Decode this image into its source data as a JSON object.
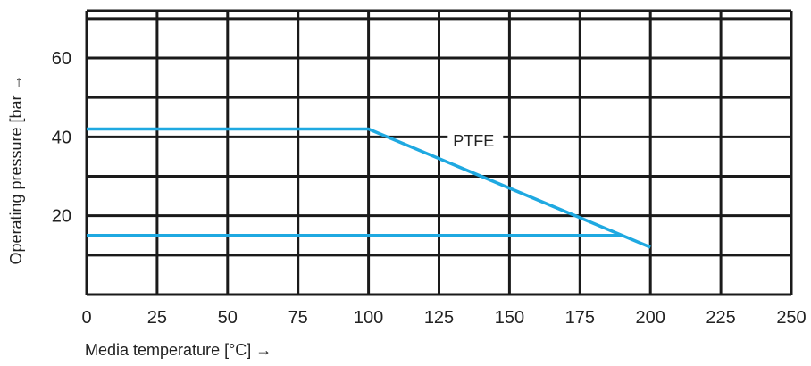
{
  "chart_data": {
    "type": "line",
    "title": "",
    "xlabel": "Media temperature [°C] →",
    "ylabel": "Operating pressure [bar →",
    "xlim": [
      0,
      250
    ],
    "ylim": [
      0,
      72
    ],
    "xticks": [
      0,
      25,
      50,
      75,
      100,
      125,
      150,
      175,
      200,
      225,
      250
    ],
    "yticks": [
      20,
      40,
      60
    ],
    "grid": true,
    "series": [
      {
        "name": "PTFE",
        "x": [
          0,
          100,
          200
        ],
        "y": [
          42,
          42,
          12
        ]
      },
      {
        "name": "",
        "x": [
          0,
          190
        ],
        "y": [
          15,
          15
        ]
      }
    ],
    "annotations": [
      {
        "text": "PTFE",
        "x": 130,
        "y": 38
      }
    ],
    "colors": {
      "series": "#1fa9e1",
      "grid": "#1a1a1a"
    }
  }
}
